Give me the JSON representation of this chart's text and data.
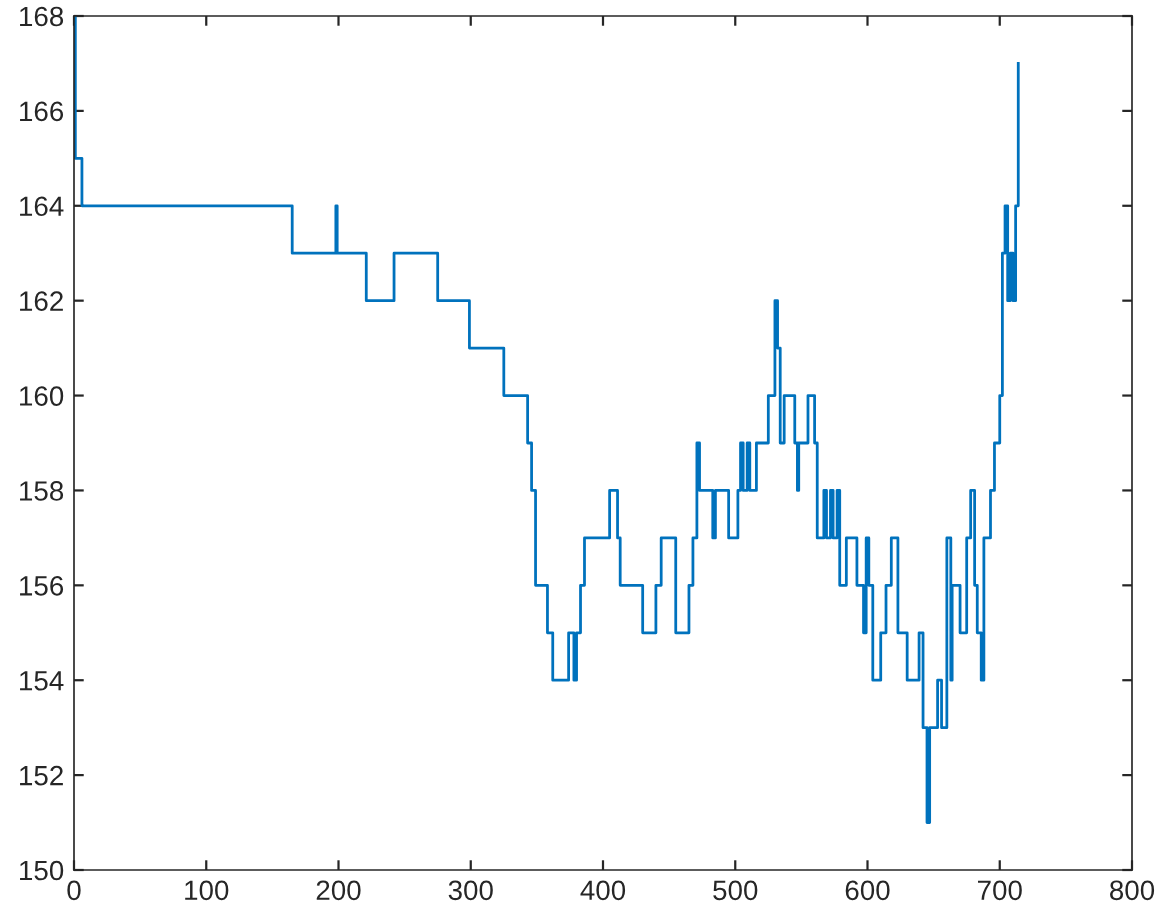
{
  "chart_data": {
    "type": "step",
    "x": [
      0,
      1,
      6,
      165,
      198,
      199,
      221,
      242,
      275,
      299,
      325,
      343,
      346,
      349,
      358,
      362,
      374,
      378,
      380,
      383,
      386,
      405,
      411,
      413,
      430,
      440,
      444,
      455,
      465,
      468,
      471,
      473,
      483,
      485,
      495,
      502,
      504,
      506,
      509,
      511,
      516,
      525,
      530,
      532,
      534,
      537,
      545,
      547,
      548,
      555,
      560,
      562,
      567,
      569,
      572,
      574,
      577,
      579,
      584,
      592,
      597,
      599,
      601,
      604,
      610,
      614,
      618,
      623,
      630,
      639,
      642,
      645,
      647,
      653,
      656,
      660,
      663,
      664,
      670,
      675,
      678,
      681,
      683,
      686,
      688,
      693,
      696,
      700,
      702,
      704,
      706,
      708,
      710,
      712,
      714
    ],
    "values": [
      168,
      165,
      164,
      163,
      164,
      163,
      162,
      163,
      162,
      161,
      160,
      159,
      158,
      156,
      155,
      154,
      155,
      154,
      155,
      156,
      157,
      158,
      157,
      156,
      155,
      156,
      157,
      155,
      156,
      157,
      159,
      158,
      157,
      158,
      157,
      158,
      159,
      158,
      159,
      158,
      159,
      160,
      162,
      161,
      159,
      160,
      159,
      158,
      159,
      160,
      159,
      157,
      158,
      157,
      158,
      157,
      158,
      156,
      157,
      156,
      155,
      157,
      156,
      154,
      155,
      156,
      157,
      155,
      154,
      155,
      153,
      151,
      153,
      154,
      153,
      157,
      154,
      156,
      155,
      157,
      158,
      156,
      155,
      154,
      157,
      158,
      159,
      160,
      163,
      164,
      162,
      163,
      162,
      164,
      167
    ],
    "color": "#0072bd",
    "xlim": [
      0,
      800
    ],
    "xticks": [
      0,
      100,
      200,
      300,
      400,
      500,
      600,
      700,
      800
    ],
    "ylim": [
      150,
      168
    ],
    "yticks": [
      150,
      152,
      154,
      156,
      158,
      160,
      162,
      164,
      166,
      168
    ]
  }
}
